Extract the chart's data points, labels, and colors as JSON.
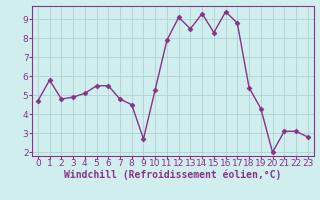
{
  "x": [
    0,
    1,
    2,
    3,
    4,
    5,
    6,
    7,
    8,
    9,
    10,
    11,
    12,
    13,
    14,
    15,
    16,
    17,
    18,
    19,
    20,
    21,
    22,
    23
  ],
  "y": [
    4.7,
    5.8,
    4.8,
    4.9,
    5.1,
    5.5,
    5.5,
    4.8,
    4.5,
    2.7,
    5.3,
    7.9,
    9.1,
    8.5,
    9.3,
    8.3,
    9.4,
    8.8,
    5.4,
    4.3,
    2.0,
    3.1,
    3.1,
    2.8
  ],
  "line_color": "#883388",
  "marker": "D",
  "markersize": 2.5,
  "linewidth": 1.0,
  "xlabel": "Windchill (Refroidissement éolien,°C)",
  "xlim": [
    -0.5,
    23.5
  ],
  "ylim": [
    1.8,
    9.7
  ],
  "yticks": [
    2,
    3,
    4,
    5,
    6,
    7,
    8,
    9
  ],
  "xticks": [
    0,
    1,
    2,
    3,
    4,
    5,
    6,
    7,
    8,
    9,
    10,
    11,
    12,
    13,
    14,
    15,
    16,
    17,
    18,
    19,
    20,
    21,
    22,
    23
  ],
  "bg_color": "#d0eeee",
  "grid_color": "#aacccc",
  "spine_color": "#883388",
  "label_color": "#883388",
  "tick_color": "#883388",
  "xlabel_fontsize": 7.0,
  "tick_fontsize": 6.5
}
